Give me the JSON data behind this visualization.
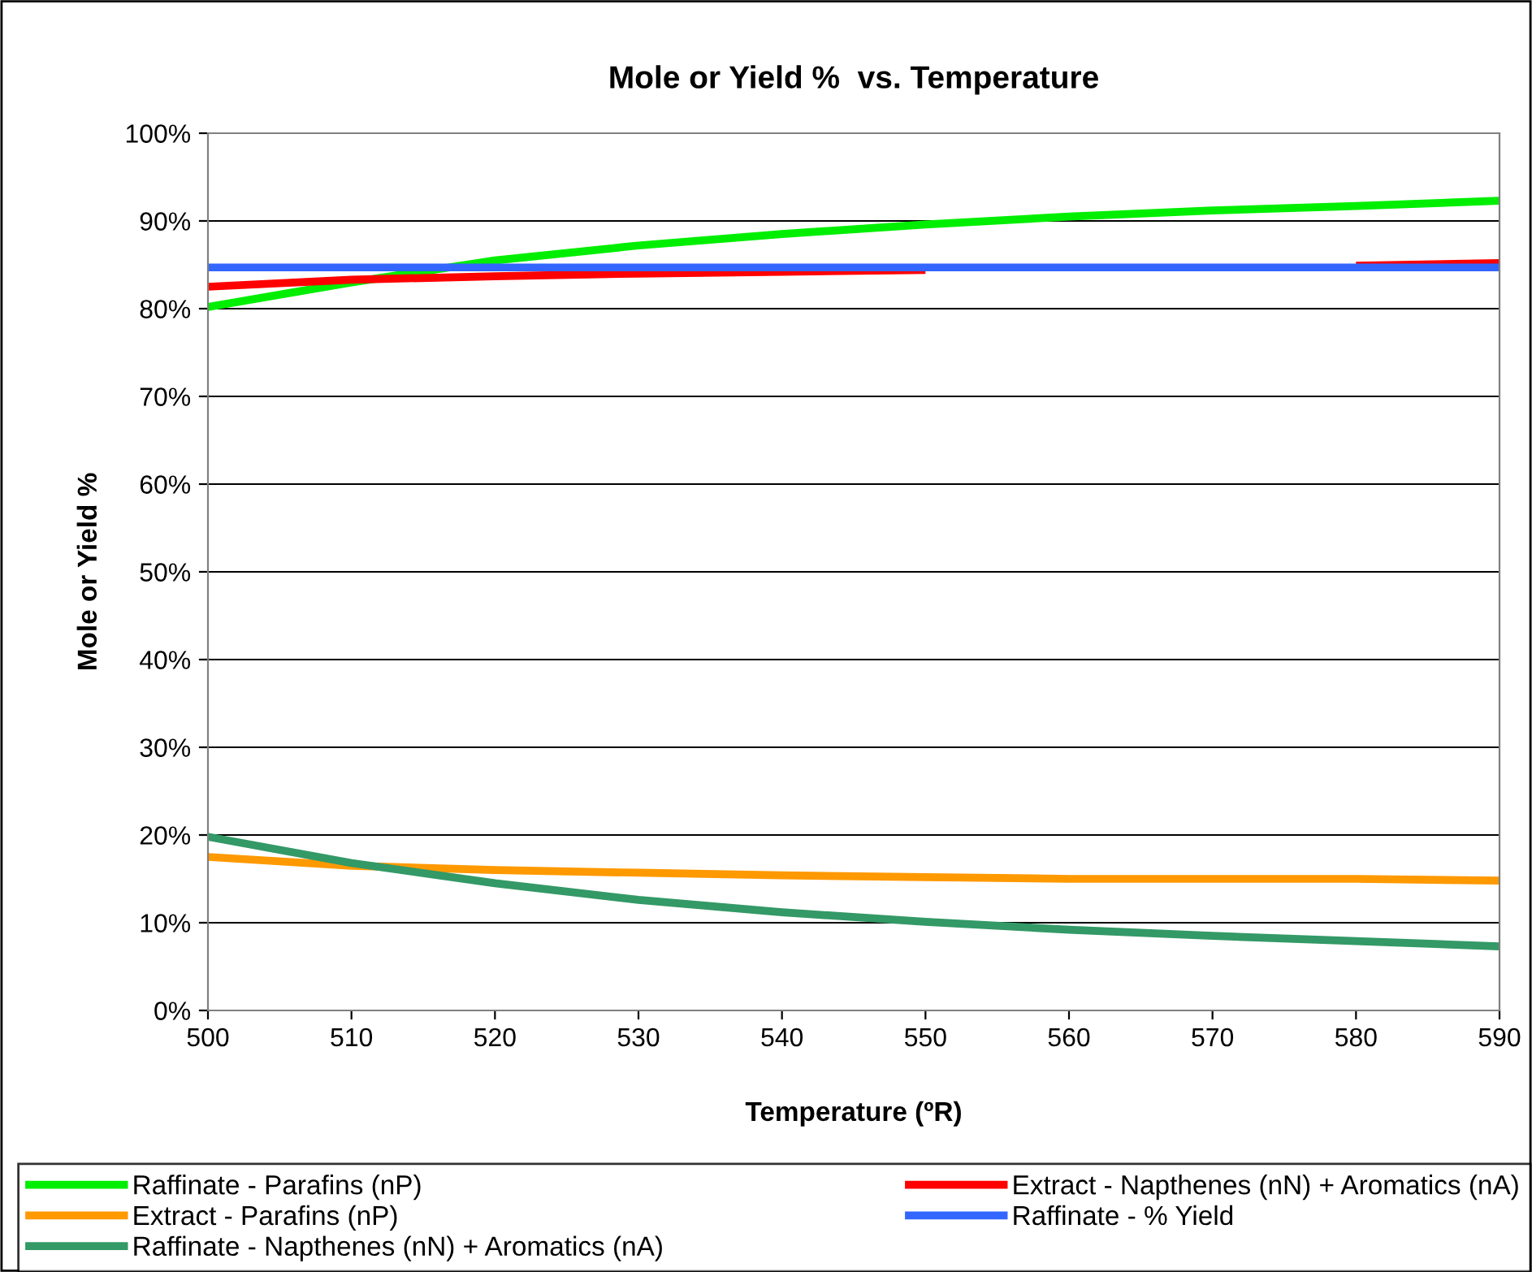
{
  "chart_data": {
    "type": "line",
    "title": "Mole or Yield %  vs. Temperature",
    "xlabel": "Temperature (ºR)",
    "ylabel": "Mole or Yield %",
    "x": [
      500,
      510,
      520,
      530,
      540,
      550,
      560,
      570,
      580,
      590
    ],
    "xlim": [
      500,
      590
    ],
    "xticks": [
      500,
      510,
      520,
      530,
      540,
      550,
      560,
      570,
      580,
      590
    ],
    "ylim": [
      0,
      100
    ],
    "yticks": [
      {
        "value": 0,
        "label": "0%"
      },
      {
        "value": 10,
        "label": "10%"
      },
      {
        "value": 20,
        "label": "20%"
      },
      {
        "value": 30,
        "label": "30%"
      },
      {
        "value": 40,
        "label": "40%"
      },
      {
        "value": 50,
        "label": "50%"
      },
      {
        "value": 60,
        "label": "60%"
      },
      {
        "value": 70,
        "label": "70%"
      },
      {
        "value": 80,
        "label": "80%"
      },
      {
        "value": 90,
        "label": "90%"
      },
      {
        "value": 100,
        "label": "100%"
      }
    ],
    "grid": "y",
    "legend": "bottom",
    "marker": "none",
    "line_style": "solid",
    "series": [
      {
        "name": "Raffinate - Parafins (nP)",
        "color": "#00ee00",
        "values": [
          80.2,
          83.0,
          85.5,
          87.2,
          88.5,
          89.6,
          90.5,
          91.2,
          91.7,
          92.3
        ]
      },
      {
        "name": "Extract - Parafins (nP)",
        "color": "#ff9900",
        "values": [
          17.5,
          16.5,
          16.0,
          15.7,
          15.4,
          15.2,
          15.0,
          15.0,
          15.0,
          14.8
        ]
      },
      {
        "name": "Raffinate - Napthenes (nN) + Aromatics (nA)",
        "color": "#339966",
        "values": [
          19.8,
          16.8,
          14.5,
          12.6,
          11.2,
          10.1,
          9.2,
          8.5,
          7.9,
          7.3
        ]
      },
      {
        "name": "Extract - Napthenes (nN) + Aromatics (nA)",
        "color": "#ff0000",
        "values": [
          82.5,
          83.3,
          83.7,
          84.0,
          84.2,
          84.4,
          null,
          null,
          84.9,
          85.2
        ]
      },
      {
        "name": "Raffinate - % Yield",
        "color": "#3366ff",
        "values": [
          84.7,
          84.7,
          84.7,
          84.7,
          84.7,
          84.7,
          84.7,
          84.7,
          84.7,
          84.7
        ]
      }
    ]
  }
}
